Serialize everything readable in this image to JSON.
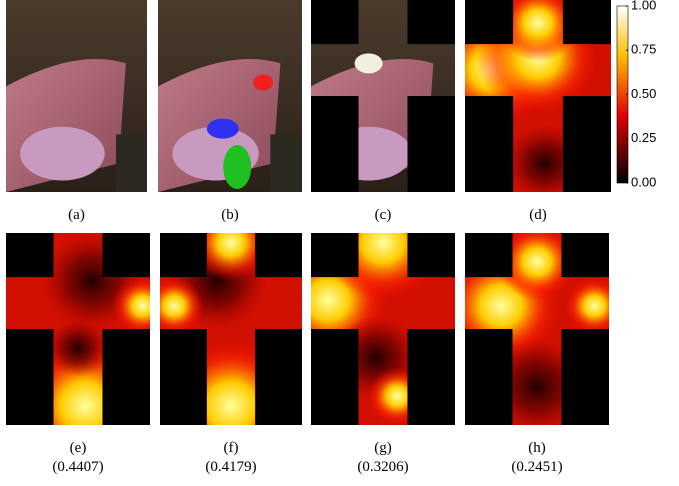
{
  "panels": [
    {
      "label": "(a)"
    },
    {
      "label": "(b)"
    },
    {
      "label": "(c)"
    },
    {
      "label": "(d)"
    },
    {
      "label": "(e)",
      "score": "(0.4407)"
    },
    {
      "label": "(f)",
      "score": "(0.4179)"
    },
    {
      "label": "(g)",
      "score": "(0.3206)"
    },
    {
      "label": "(h)",
      "score": "(0.2451)"
    }
  ],
  "colorbar": {
    "ticks": [
      {
        "value": 1,
        "label": "1.00"
      },
      {
        "value": 0.75,
        "label": "0.75"
      },
      {
        "value": 0.5,
        "label": "0.50"
      },
      {
        "value": 0.25,
        "label": "0.25"
      },
      {
        "value": 0,
        "label": "0.00"
      }
    ]
  }
}
